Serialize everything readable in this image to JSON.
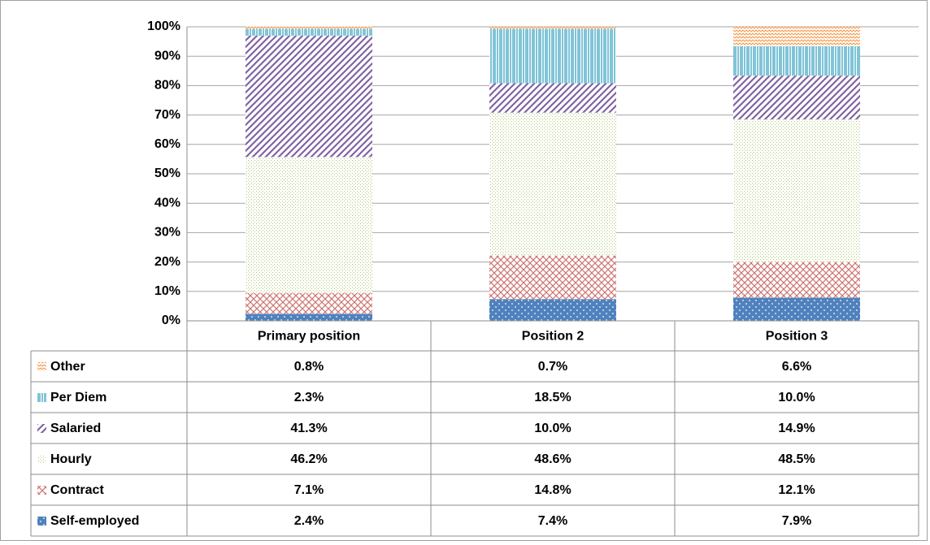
{
  "chart_data": {
    "type": "stacked_bar",
    "categories": [
      "Primary position",
      "Position 2",
      "Position 3"
    ],
    "series": [
      {
        "name": "Self-employed",
        "color": "#4f81bd",
        "values": [
          2.4,
          7.4,
          7.9
        ],
        "value_labels": [
          "2.4%",
          "7.4%",
          "7.9%"
        ]
      },
      {
        "name": "Contract",
        "color": "#c0504d",
        "values": [
          7.1,
          14.8,
          12.1
        ],
        "value_labels": [
          "7.1%",
          "14.8%",
          "12.1%"
        ]
      },
      {
        "name": "Hourly",
        "color": "#9bbb59",
        "values": [
          46.2,
          48.6,
          48.5
        ],
        "value_labels": [
          "46.2%",
          "48.6%",
          "48.5%"
        ]
      },
      {
        "name": "Salaried",
        "color": "#8064a2",
        "values": [
          41.3,
          10.0,
          14.9
        ],
        "value_labels": [
          "41.3%",
          "10.0%",
          "14.9%"
        ]
      },
      {
        "name": "Per Diem",
        "color": "#4bacc6",
        "values": [
          2.3,
          18.5,
          10.0
        ],
        "value_labels": [
          "2.3%",
          "18.5%",
          "10.0%"
        ]
      },
      {
        "name": "Other",
        "color": "#f79646",
        "values": [
          0.8,
          0.7,
          6.6
        ],
        "value_labels": [
          "0.8%",
          "0.7%",
          "6.6%"
        ]
      }
    ],
    "ylim": [
      0,
      100
    ],
    "yticks": [
      {
        "value": 0,
        "label": "0%"
      },
      {
        "value": 10,
        "label": "10%"
      },
      {
        "value": 20,
        "label": "20%"
      },
      {
        "value": 30,
        "label": "30%"
      },
      {
        "value": 40,
        "label": "40%"
      },
      {
        "value": 50,
        "label": "50%"
      },
      {
        "value": 60,
        "label": "60%"
      },
      {
        "value": 70,
        "label": "70%"
      },
      {
        "value": 80,
        "label": "80%"
      },
      {
        "value": 90,
        "label": "90%"
      },
      {
        "value": 100,
        "label": "100%"
      }
    ],
    "grid": true
  }
}
